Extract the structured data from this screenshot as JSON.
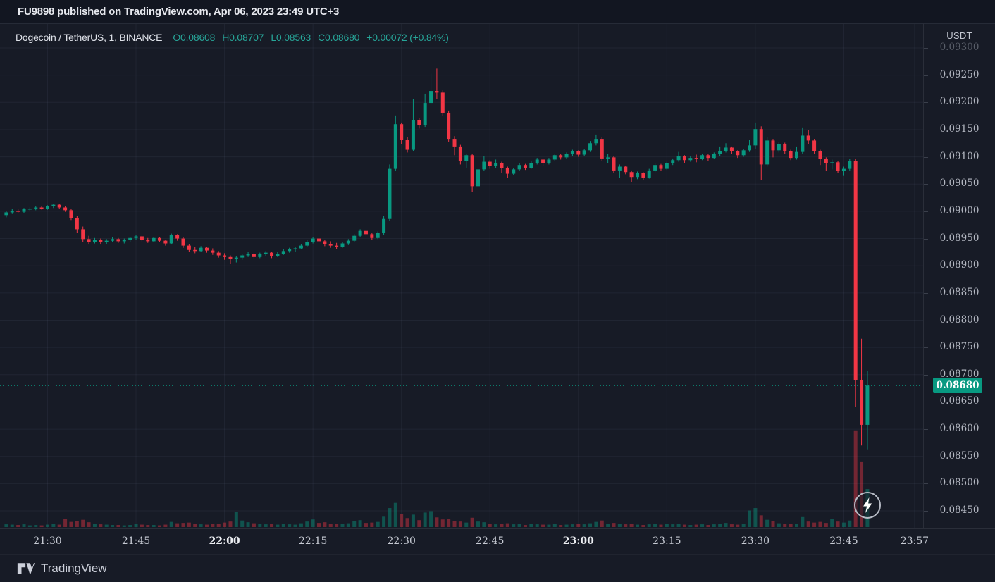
{
  "header": {
    "published_line": "FU9898 published on TradingView.com, Apr 06, 2023 23:49 UTC+3"
  },
  "legend": {
    "title": "Dogecoin / TetherUS, 1, BINANCE",
    "open": "O0.08608",
    "high": "H0.08707",
    "low": "L0.08563",
    "close": "C0.08680",
    "change": "+0.00072 (+0.84%)"
  },
  "price_axis": {
    "currency_label": "USDT",
    "ticks": [
      "0.09300",
      "0.09250",
      "0.09200",
      "0.09150",
      "0.09100",
      "0.09050",
      "0.09000",
      "0.08950",
      "0.08900",
      "0.08850",
      "0.08800",
      "0.08750",
      "0.08700",
      "0.08650",
      "0.08600",
      "0.08550",
      "0.08500",
      "0.08450"
    ],
    "last_price_label": "0.08680"
  },
  "time_axis": {
    "ticks": [
      "21:30",
      "21:45",
      "22:00",
      "22:15",
      "22:30",
      "22:45",
      "23:00",
      "23:15",
      "23:30",
      "23:45",
      "23:57"
    ],
    "session_start": "21:23"
  },
  "footer": {
    "brand": "TradingView"
  },
  "colors": {
    "up": "#089981",
    "down": "#F23645",
    "up_volume": "rgba(8,153,129,0.45)",
    "down_volume": "rgba(242,54,69,0.42)",
    "grid": "rgba(134,146,172,0.09)",
    "last_price_line": "#089981",
    "badge": "#089981",
    "background": "#171B26"
  },
  "chart_data": {
    "type": "candlestick",
    "title": "Dogecoin / TetherUS",
    "interval_minutes": 1,
    "exchange": "BINANCE",
    "currency": "USDT",
    "last_candle": {
      "open": 0.08608,
      "high": 0.08707,
      "low": 0.08563,
      "close": 0.0868,
      "change": "+0.00072",
      "change_pct": "+0.84%"
    },
    "current_price": 0.0868,
    "y_gridline_step": 0.0005,
    "y_top_price": 0.093,
    "y_bottom_price": 0.0845,
    "legend_position": "top-left",
    "candles_format": [
      "time",
      "open",
      "high",
      "low",
      "close",
      "volume_rel"
    ],
    "candles": [
      [
        "21:23",
        0.08993,
        0.09001,
        0.08989,
        0.08998,
        0.8
      ],
      [
        "21:24",
        0.08998,
        0.09004,
        0.08995,
        0.09001,
        0.7
      ],
      [
        "21:25",
        0.09001,
        0.09005,
        0.08997,
        0.08999,
        0.6
      ],
      [
        "21:26",
        0.08999,
        0.09006,
        0.08997,
        0.09004,
        0.8
      ],
      [
        "21:27",
        0.09004,
        0.09007,
        0.09,
        0.09005,
        0.5
      ],
      [
        "21:28",
        0.09005,
        0.09009,
        0.09002,
        0.09007,
        0.6
      ],
      [
        "21:29",
        0.09007,
        0.0901,
        0.09003,
        0.09005,
        0.5
      ],
      [
        "21:30",
        0.09005,
        0.09011,
        0.09003,
        0.09009,
        0.7
      ],
      [
        "21:31",
        0.09009,
        0.09014,
        0.09006,
        0.09012,
        0.9
      ],
      [
        "21:32",
        0.09012,
        0.09013,
        0.09005,
        0.09007,
        0.7
      ],
      [
        "21:33",
        0.09007,
        0.0901,
        0.08999,
        0.09002,
        2.4
      ],
      [
        "21:34",
        0.09002,
        0.09004,
        0.08984,
        0.08988,
        1.5
      ],
      [
        "21:35",
        0.08988,
        0.08991,
        0.08961,
        0.08967,
        1.8
      ],
      [
        "21:36",
        0.08967,
        0.08972,
        0.08944,
        0.08949,
        2.1
      ],
      [
        "21:37",
        0.08949,
        0.08955,
        0.08939,
        0.08944,
        1.4
      ],
      [
        "21:38",
        0.08944,
        0.08951,
        0.08941,
        0.08948,
        0.9
      ],
      [
        "21:39",
        0.08948,
        0.0895,
        0.08939,
        0.08943,
        0.8
      ],
      [
        "21:40",
        0.08943,
        0.08949,
        0.0894,
        0.08946,
        0.7
      ],
      [
        "21:41",
        0.08946,
        0.08952,
        0.08943,
        0.08949,
        0.6
      ],
      [
        "21:42",
        0.08949,
        0.08951,
        0.08942,
        0.08945,
        0.6
      ],
      [
        "21:43",
        0.08945,
        0.0895,
        0.08941,
        0.08947,
        0.5
      ],
      [
        "21:44",
        0.08947,
        0.08953,
        0.08944,
        0.08951,
        0.6
      ],
      [
        "21:45",
        0.08951,
        0.08957,
        0.08947,
        0.08954,
        0.9
      ],
      [
        "21:46",
        0.08954,
        0.08955,
        0.08945,
        0.08948,
        0.7
      ],
      [
        "21:47",
        0.08948,
        0.08951,
        0.08942,
        0.08945,
        0.6
      ],
      [
        "21:48",
        0.08945,
        0.08953,
        0.08943,
        0.08951,
        0.6
      ],
      [
        "21:49",
        0.08951,
        0.08952,
        0.08943,
        0.08946,
        0.5
      ],
      [
        "21:50",
        0.08946,
        0.08948,
        0.08937,
        0.08941,
        0.7
      ],
      [
        "21:51",
        0.08941,
        0.08959,
        0.08939,
        0.08956,
        1.5
      ],
      [
        "21:52",
        0.08956,
        0.08958,
        0.08946,
        0.0895,
        1.1
      ],
      [
        "21:53",
        0.0895,
        0.08952,
        0.08933,
        0.08937,
        1.2
      ],
      [
        "21:54",
        0.08937,
        0.0894,
        0.08925,
        0.08929,
        1.3
      ],
      [
        "21:55",
        0.08929,
        0.08935,
        0.08923,
        0.08927,
        0.9
      ],
      [
        "21:56",
        0.08927,
        0.08936,
        0.08925,
        0.08933,
        0.8
      ],
      [
        "21:57",
        0.08933,
        0.08934,
        0.08924,
        0.08928,
        0.7
      ],
      [
        "21:58",
        0.08928,
        0.08932,
        0.0892,
        0.08924,
        0.9
      ],
      [
        "21:59",
        0.08924,
        0.08927,
        0.08915,
        0.08919,
        1.0
      ],
      [
        "22:00",
        0.08919,
        0.08923,
        0.08911,
        0.08916,
        1.3
      ],
      [
        "22:01",
        0.08916,
        0.08919,
        0.08904,
        0.08912,
        1.6
      ],
      [
        "22:02",
        0.08912,
        0.08918,
        0.08906,
        0.08915,
        4.4
      ],
      [
        "22:03",
        0.08915,
        0.08922,
        0.08911,
        0.08919,
        1.9
      ],
      [
        "22:04",
        0.08919,
        0.08925,
        0.08916,
        0.08922,
        1.4
      ],
      [
        "22:05",
        0.08922,
        0.08924,
        0.08912,
        0.08916,
        1.1
      ],
      [
        "22:06",
        0.08916,
        0.08924,
        0.08914,
        0.08921,
        0.9
      ],
      [
        "22:07",
        0.08921,
        0.08927,
        0.08918,
        0.08924,
        0.8
      ],
      [
        "22:08",
        0.08924,
        0.08926,
        0.08914,
        0.08918,
        1.0
      ],
      [
        "22:09",
        0.08918,
        0.08925,
        0.08916,
        0.08922,
        0.7
      ],
      [
        "22:10",
        0.08922,
        0.0893,
        0.0892,
        0.08927,
        0.9
      ],
      [
        "22:11",
        0.08927,
        0.08933,
        0.08924,
        0.0893,
        0.8
      ],
      [
        "22:12",
        0.0893,
        0.08935,
        0.08926,
        0.08932,
        0.7
      ],
      [
        "22:13",
        0.08932,
        0.0894,
        0.0893,
        0.08937,
        1.1
      ],
      [
        "22:14",
        0.08937,
        0.08947,
        0.08934,
        0.08944,
        1.6
      ],
      [
        "22:15",
        0.08944,
        0.08953,
        0.08941,
        0.0895,
        2.2
      ],
      [
        "22:16",
        0.0895,
        0.08952,
        0.08942,
        0.08945,
        1.2
      ],
      [
        "22:17",
        0.08945,
        0.08948,
        0.08936,
        0.0894,
        1.4
      ],
      [
        "22:18",
        0.0894,
        0.08945,
        0.08933,
        0.08937,
        1.0
      ],
      [
        "22:19",
        0.08937,
        0.08942,
        0.08931,
        0.08935,
        0.9
      ],
      [
        "22:20",
        0.08935,
        0.08944,
        0.08933,
        0.08941,
        1.0
      ],
      [
        "22:21",
        0.08941,
        0.08949,
        0.08938,
        0.08946,
        1.1
      ],
      [
        "22:22",
        0.08946,
        0.08958,
        0.08944,
        0.08955,
        1.8
      ],
      [
        "22:23",
        0.08955,
        0.08967,
        0.08952,
        0.08964,
        2.0
      ],
      [
        "22:24",
        0.08964,
        0.08966,
        0.08954,
        0.08958,
        1.2
      ],
      [
        "22:25",
        0.08958,
        0.08961,
        0.08947,
        0.08951,
        1.3
      ],
      [
        "22:26",
        0.08951,
        0.08963,
        0.08949,
        0.0896,
        1.5
      ],
      [
        "22:27",
        0.0896,
        0.08991,
        0.08957,
        0.08986,
        3.0
      ],
      [
        "22:28",
        0.08986,
        0.09086,
        0.08983,
        0.09078,
        5.5
      ],
      [
        "22:29",
        0.09078,
        0.09176,
        0.09074,
        0.0916,
        7.0
      ],
      [
        "22:30",
        0.0916,
        0.09163,
        0.09124,
        0.09131,
        3.8
      ],
      [
        "22:31",
        0.09131,
        0.09136,
        0.09108,
        0.09113,
        2.6
      ],
      [
        "22:32",
        0.09113,
        0.09206,
        0.0911,
        0.09168,
        3.6
      ],
      [
        "22:33",
        0.09168,
        0.09172,
        0.09152,
        0.09158,
        2.0
      ],
      [
        "22:34",
        0.09158,
        0.09216,
        0.09155,
        0.09199,
        4.2
      ],
      [
        "22:35",
        0.09199,
        0.09253,
        0.09196,
        0.09221,
        4.6
      ],
      [
        "22:36",
        0.09221,
        0.09262,
        0.09206,
        0.09218,
        2.8
      ],
      [
        "22:37",
        0.09218,
        0.09222,
        0.09176,
        0.09181,
        2.2
      ],
      [
        "22:38",
        0.09181,
        0.09185,
        0.09128,
        0.09133,
        2.4
      ],
      [
        "22:39",
        0.09133,
        0.09138,
        0.09103,
        0.09119,
        1.8
      ],
      [
        "22:40",
        0.09119,
        0.09122,
        0.09086,
        0.09092,
        1.6
      ],
      [
        "22:41",
        0.09092,
        0.09106,
        0.09079,
        0.09103,
        1.3
      ],
      [
        "22:42",
        0.09103,
        0.09105,
        0.09035,
        0.09046,
        2.7
      ],
      [
        "22:43",
        0.09046,
        0.0908,
        0.09042,
        0.09077,
        1.6
      ],
      [
        "22:44",
        0.09077,
        0.09102,
        0.09074,
        0.09091,
        1.4
      ],
      [
        "22:45",
        0.09091,
        0.09094,
        0.09078,
        0.09083,
        1.0
      ],
      [
        "22:46",
        0.09083,
        0.09095,
        0.09079,
        0.09089,
        0.8
      ],
      [
        "22:47",
        0.09089,
        0.09091,
        0.09071,
        0.09079,
        0.9
      ],
      [
        "22:48",
        0.09079,
        0.09082,
        0.09061,
        0.09069,
        1.1
      ],
      [
        "22:49",
        0.09069,
        0.0908,
        0.09066,
        0.09077,
        0.8
      ],
      [
        "22:50",
        0.09077,
        0.09088,
        0.09074,
        0.09085,
        0.9
      ],
      [
        "22:51",
        0.09085,
        0.09087,
        0.09076,
        0.0908,
        0.6
      ],
      [
        "22:52",
        0.0908,
        0.09092,
        0.09078,
        0.09089,
        0.9
      ],
      [
        "22:53",
        0.09089,
        0.09098,
        0.09086,
        0.09095,
        0.8
      ],
      [
        "22:54",
        0.09095,
        0.09097,
        0.09084,
        0.09088,
        0.7
      ],
      [
        "22:55",
        0.09088,
        0.09098,
        0.09086,
        0.09095,
        0.7
      ],
      [
        "22:56",
        0.09095,
        0.09106,
        0.09093,
        0.09103,
        0.9
      ],
      [
        "22:57",
        0.09103,
        0.09105,
        0.09095,
        0.09099,
        0.6
      ],
      [
        "22:58",
        0.09099,
        0.09108,
        0.09096,
        0.09105,
        0.7
      ],
      [
        "22:59",
        0.09105,
        0.09113,
        0.09102,
        0.0911,
        0.8
      ],
      [
        "23:00",
        0.0911,
        0.09112,
        0.091,
        0.09104,
        0.9
      ],
      [
        "23:01",
        0.09104,
        0.09115,
        0.09101,
        0.09112,
        0.8
      ],
      [
        "23:02",
        0.09112,
        0.09129,
        0.09109,
        0.09125,
        1.1
      ],
      [
        "23:03",
        0.09125,
        0.09141,
        0.09121,
        0.09133,
        1.5
      ],
      [
        "23:04",
        0.09133,
        0.09136,
        0.09092,
        0.09097,
        1.9
      ],
      [
        "23:05",
        0.09097,
        0.09105,
        0.09089,
        0.09099,
        0.9
      ],
      [
        "23:06",
        0.09099,
        0.09101,
        0.0907,
        0.09075,
        1.2
      ],
      [
        "23:07",
        0.09075,
        0.09086,
        0.09061,
        0.09082,
        1.0
      ],
      [
        "23:08",
        0.09082,
        0.09084,
        0.09068,
        0.09072,
        0.8
      ],
      [
        "23:09",
        0.09072,
        0.09075,
        0.09054,
        0.09063,
        1.0
      ],
      [
        "23:10",
        0.09063,
        0.09073,
        0.09059,
        0.0907,
        0.7
      ],
      [
        "23:11",
        0.0907,
        0.09072,
        0.09058,
        0.09062,
        0.6
      ],
      [
        "23:12",
        0.09062,
        0.09078,
        0.0906,
        0.09075,
        0.8
      ],
      [
        "23:13",
        0.09075,
        0.09088,
        0.09072,
        0.09085,
        0.9
      ],
      [
        "23:14",
        0.09085,
        0.09087,
        0.09074,
        0.09078,
        0.7
      ],
      [
        "23:15",
        0.09078,
        0.09091,
        0.09076,
        0.09088,
        0.9
      ],
      [
        "23:16",
        0.09088,
        0.09097,
        0.09085,
        0.09094,
        0.8
      ],
      [
        "23:17",
        0.09094,
        0.09109,
        0.09091,
        0.09101,
        1.0
      ],
      [
        "23:18",
        0.09101,
        0.09103,
        0.09089,
        0.09094,
        0.7
      ],
      [
        "23:19",
        0.09094,
        0.09102,
        0.09091,
        0.09098,
        0.6
      ],
      [
        "23:20",
        0.09098,
        0.09104,
        0.0909,
        0.09096,
        0.7
      ],
      [
        "23:21",
        0.09096,
        0.09106,
        0.09094,
        0.09103,
        0.8
      ],
      [
        "23:22",
        0.09103,
        0.09105,
        0.09093,
        0.09098,
        0.6
      ],
      [
        "23:23",
        0.09098,
        0.09108,
        0.09096,
        0.09105,
        0.8
      ],
      [
        "23:24",
        0.09105,
        0.09119,
        0.09102,
        0.09111,
        1.0
      ],
      [
        "23:25",
        0.09111,
        0.09125,
        0.09108,
        0.09117,
        1.2
      ],
      [
        "23:26",
        0.09117,
        0.09119,
        0.09105,
        0.0911,
        0.8
      ],
      [
        "23:27",
        0.0911,
        0.09112,
        0.09098,
        0.09103,
        0.7
      ],
      [
        "23:28",
        0.09103,
        0.09115,
        0.091,
        0.09112,
        0.9
      ],
      [
        "23:29",
        0.09112,
        0.09131,
        0.09109,
        0.09121,
        4.8
      ],
      [
        "23:30",
        0.09121,
        0.09163,
        0.09115,
        0.09151,
        5.5
      ],
      [
        "23:31",
        0.09151,
        0.09156,
        0.09057,
        0.09086,
        3.4
      ],
      [
        "23:32",
        0.09086,
        0.09136,
        0.09082,
        0.0913,
        2.1
      ],
      [
        "23:33",
        0.0913,
        0.09133,
        0.09099,
        0.09112,
        1.8
      ],
      [
        "23:34",
        0.09112,
        0.09127,
        0.09108,
        0.09123,
        1.1
      ],
      [
        "23:35",
        0.09123,
        0.09126,
        0.09105,
        0.0911,
        0.9
      ],
      [
        "23:36",
        0.0911,
        0.09113,
        0.09094,
        0.09098,
        1.0
      ],
      [
        "23:37",
        0.09098,
        0.09119,
        0.09095,
        0.09109,
        0.9
      ],
      [
        "23:38",
        0.09109,
        0.09154,
        0.09106,
        0.09139,
        2.9
      ],
      [
        "23:39",
        0.09139,
        0.09149,
        0.09124,
        0.0913,
        1.6
      ],
      [
        "23:40",
        0.0913,
        0.09133,
        0.09106,
        0.0911,
        1.3
      ],
      [
        "23:41",
        0.0911,
        0.09113,
        0.09085,
        0.09096,
        1.5
      ],
      [
        "23:42",
        0.09096,
        0.09099,
        0.09074,
        0.09088,
        1.2
      ],
      [
        "23:43",
        0.09088,
        0.09095,
        0.09077,
        0.0909,
        2.4
      ],
      [
        "23:44",
        0.0909,
        0.09093,
        0.0907,
        0.09074,
        1.6
      ],
      [
        "23:45",
        0.09074,
        0.09082,
        0.09065,
        0.09078,
        1.3
      ],
      [
        "23:46",
        0.09078,
        0.09096,
        0.09075,
        0.09093,
        1.9
      ],
      [
        "23:47",
        0.09093,
        0.09096,
        0.08641,
        0.0869,
        28.0
      ],
      [
        "23:48",
        0.0869,
        0.08766,
        0.0857,
        0.08608,
        19.0
      ],
      [
        "23:49",
        0.08608,
        0.08707,
        0.08563,
        0.0868,
        11.0
      ]
    ]
  }
}
